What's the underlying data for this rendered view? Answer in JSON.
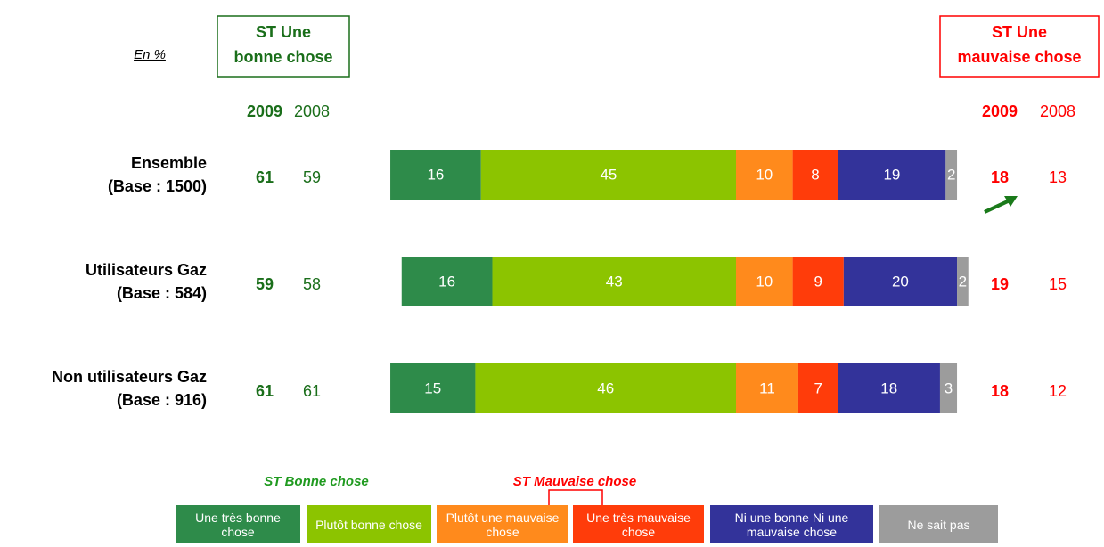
{
  "unit_label": "En %",
  "chart_data": {
    "type": "bar",
    "orientation": "horizontal",
    "stacked": true,
    "categories": [
      [
        "Ensemble",
        "(Base : 1500)"
      ],
      [
        "Utilisateurs Gaz",
        "(Base : 584)"
      ],
      [
        "Non utilisateurs Gaz",
        "(Base : 916)"
      ]
    ],
    "series": [
      {
        "name": "Une très bonne chose",
        "color": "#2e8b4a",
        "values": [
          16,
          16,
          15
        ]
      },
      {
        "name": "Plutôt bonne chose",
        "color": "#8cc400",
        "values": [
          45,
          43,
          46
        ]
      },
      {
        "name": "Plutôt une mauvaise chose",
        "color": "#ff8a1c",
        "values": [
          10,
          10,
          11
        ]
      },
      {
        "name": "Une très mauvaise chose",
        "color": "#ff3c0a",
        "values": [
          8,
          9,
          7
        ]
      },
      {
        "name": "Ni une bonne Ni une mauvaise chose",
        "color": "#33339a",
        "values": [
          19,
          20,
          18
        ]
      },
      {
        "name": "Ne sait pas",
        "color": "#9c9c9c",
        "values": [
          2,
          2,
          3
        ]
      }
    ],
    "legend_groups": [
      {
        "label": "ST Bonne chose",
        "color": "#1f9a1f"
      },
      {
        "label": "ST Mauvaise chose",
        "color": "#ff0000"
      }
    ]
  },
  "summary_good": {
    "title": [
      "ST Une",
      "bonne chose"
    ],
    "color": "#1a6e1a",
    "years": [
      2009,
      2008
    ],
    "values": [
      [
        61,
        59
      ],
      [
        59,
        58
      ],
      [
        61,
        61
      ]
    ]
  },
  "summary_bad": {
    "title": [
      "ST Une",
      "mauvaise chose"
    ],
    "color": "#ff0000",
    "years": [
      2009,
      2008
    ],
    "values": [
      [
        18,
        13
      ],
      [
        19,
        15
      ],
      [
        18,
        12
      ]
    ]
  }
}
